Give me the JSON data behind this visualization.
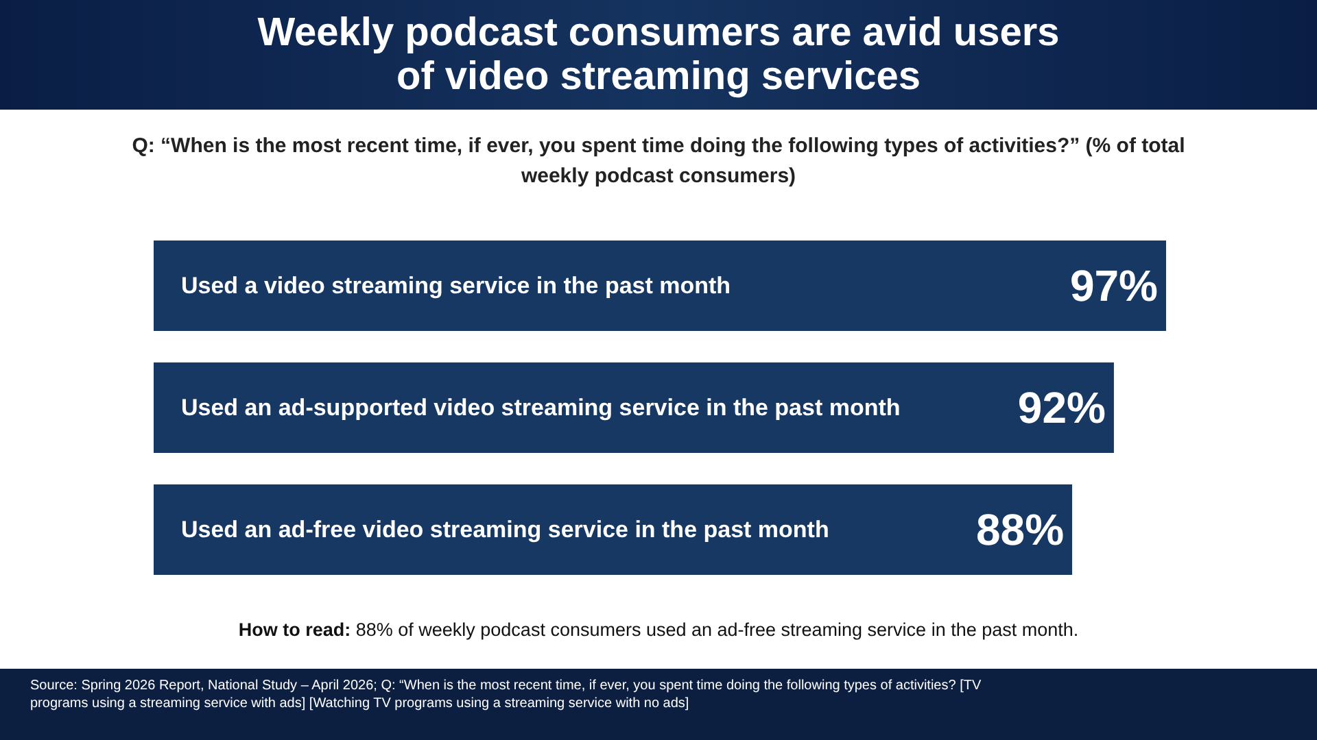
{
  "chart_data": {
    "type": "bar",
    "orientation": "horizontal",
    "title": "Weekly podcast consumers are avid users of video streaming services",
    "subtitle": "Q: “When is the most recent time, if ever, you spent time doing the following types of activities?” (% of total weekly podcast consumers)",
    "categories": [
      "Used a video streaming service in the past month",
      "Used an ad-supported video streaming service in the past month",
      "Used an ad-free video streaming service in the past month"
    ],
    "values": [
      97,
      92,
      88
    ],
    "color": "#173863",
    "data_labels": true,
    "value_labels": [
      "97%",
      "92%",
      "88%"
    ],
    "annotations": [
      "How to read: 88% of weekly podcast consumers used an ad-free streaming service in the past month.",
      "Source: Spring 2026 Report, National Study – April 2026; Q: “When is the most recent time, if ever, you spent time doing the following types of activities? [TV programs using a streaming service with ads] [Watching TV programs using a streaming service with no ads]"
    ]
  }
}
